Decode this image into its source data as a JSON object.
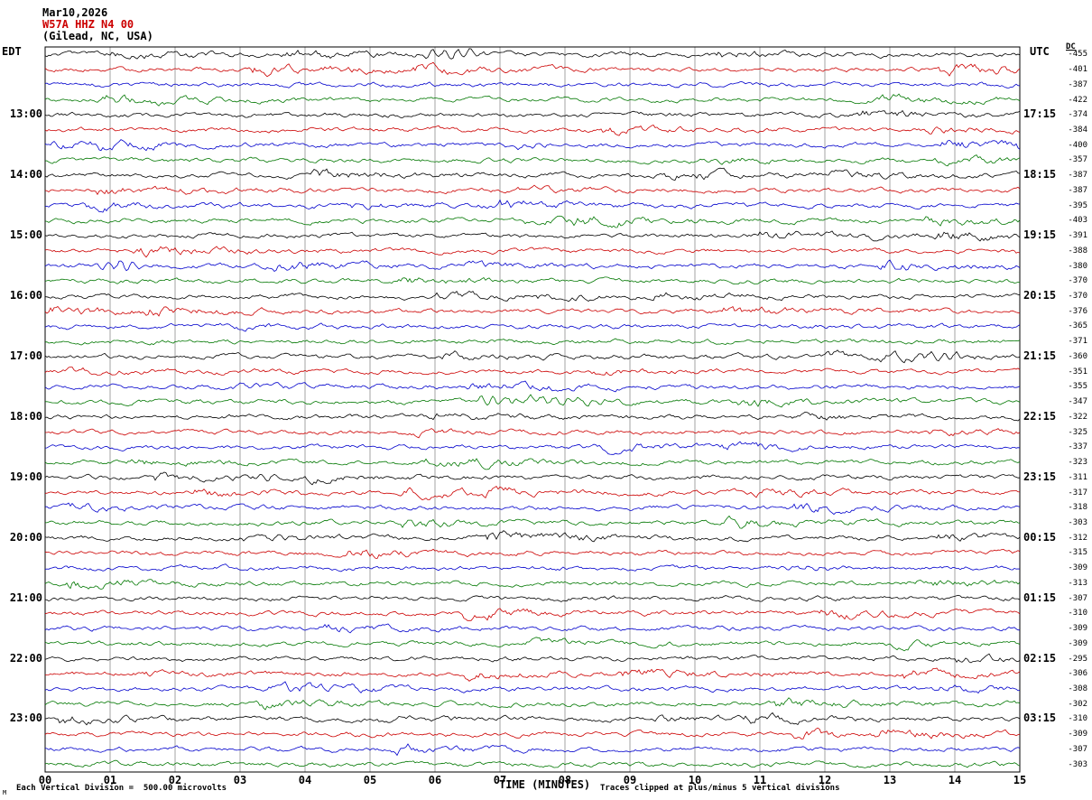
{
  "header": {
    "date": "Mar10,2026",
    "station": "W57A HHZ N4 00",
    "location": "(Gilead, NC, USA)"
  },
  "labels": {
    "left_tz": "EDT",
    "right_tz": "UTC",
    "dc_header": "DC",
    "x_axis": "TIME (MINUTES)",
    "footer_left": "Each Vertical Division =  500.00 microvolts",
    "footer_right": "Traces clipped at plus/minus 5 vertical divisions",
    "corner_mark": "M"
  },
  "colors": {
    "black": "#000000",
    "red": "#cc0000",
    "blue": "#0000cc",
    "green": "#007700",
    "grid": "#666666",
    "border": "#000000"
  },
  "chart_data": {
    "type": "line",
    "subtype": "helicorder-seismogram",
    "title": "W57A HHZ N4 00 (Gilead, NC, USA) Mar10,2026",
    "xlabel": "TIME (MINUTES)",
    "x_range_minutes": [
      0,
      15
    ],
    "x_ticks": [
      "00",
      "01",
      "02",
      "03",
      "04",
      "05",
      "06",
      "07",
      "08",
      "09",
      "10",
      "11",
      "12",
      "13",
      "14",
      "15"
    ],
    "minutes_per_row": 15,
    "row_count": 48,
    "start_time_local": "12:00 EDT",
    "start_time_utc": "16:00 UTC",
    "trace_color_cycle": [
      "#000000",
      "#cc0000",
      "#0000cc",
      "#007700"
    ],
    "clip_divisions": 5,
    "microvolts_per_division": 500.0,
    "left_time_labels": [
      {
        "row": 4,
        "label": "13:00"
      },
      {
        "row": 8,
        "label": "14:00"
      },
      {
        "row": 12,
        "label": "15:00"
      },
      {
        "row": 16,
        "label": "16:00"
      },
      {
        "row": 20,
        "label": "17:00"
      },
      {
        "row": 24,
        "label": "18:00"
      },
      {
        "row": 28,
        "label": "19:00"
      },
      {
        "row": 32,
        "label": "20:00"
      },
      {
        "row": 36,
        "label": "21:00"
      },
      {
        "row": 40,
        "label": "22:00"
      },
      {
        "row": 44,
        "label": "23:00"
      }
    ],
    "right_time_labels": [
      {
        "row": 4,
        "label": "17:15"
      },
      {
        "row": 8,
        "label": "18:15"
      },
      {
        "row": 12,
        "label": "19:15"
      },
      {
        "row": 16,
        "label": "20:15"
      },
      {
        "row": 20,
        "label": "21:15"
      },
      {
        "row": 24,
        "label": "22:15"
      },
      {
        "row": 28,
        "label": "23:15"
      },
      {
        "row": 32,
        "label": "00:15"
      },
      {
        "row": 36,
        "label": "01:15"
      },
      {
        "row": 40,
        "label": "02:15"
      },
      {
        "row": 44,
        "label": "03:15"
      }
    ],
    "dc_offsets": [
      -455,
      -401,
      -387,
      -422,
      -374,
      -384,
      -400,
      -357,
      -387,
      -387,
      -395,
      -403,
      -391,
      -388,
      -380,
      -370,
      -370,
      -376,
      -365,
      -371,
      -360,
      -351,
      -355,
      -347,
      -322,
      -325,
      -337,
      -323,
      -311,
      -317,
      -318,
      -303,
      -312,
      -315,
      -309,
      -313,
      -307,
      -310,
      -309,
      -309,
      -295,
      -306,
      -308,
      -302,
      -310,
      -309,
      -307,
      -303
    ],
    "events": [
      {
        "row": 0,
        "minute": 6.3,
        "width": 0.55,
        "amp": 5.0
      },
      {
        "row": 6,
        "minute": 7.3,
        "width": 0.5,
        "amp": 2.2
      },
      {
        "row": 14,
        "minute": 1.2,
        "width": 0.35,
        "amp": 5.0
      },
      {
        "row": 20,
        "minute": 13.8,
        "width": 0.4,
        "amp": 3.0
      },
      {
        "row": 23,
        "minute": 7.7,
        "width": 1.0,
        "amp": 2.8
      },
      {
        "row": 28,
        "minute": 3.4,
        "width": 0.12,
        "amp": 3.5
      },
      {
        "row": 34,
        "minute": 11.8,
        "width": 0.4,
        "amp": 2.0
      }
    ]
  }
}
